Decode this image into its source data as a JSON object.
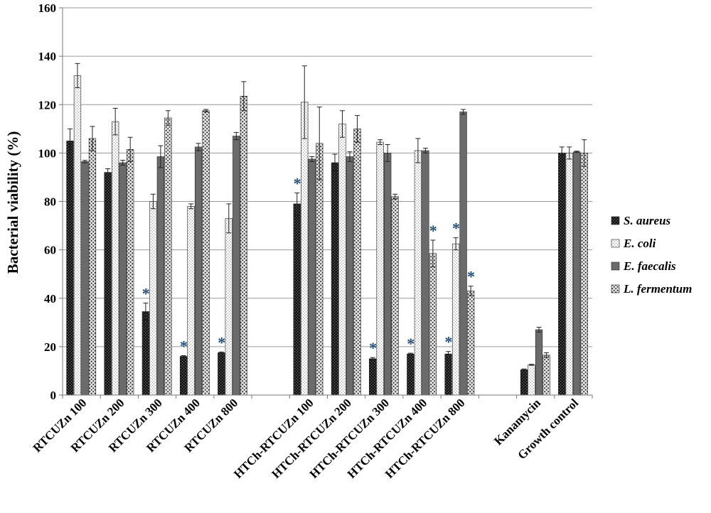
{
  "chart_data": {
    "type": "bar",
    "ylabel": "Bacterial viability (%)",
    "xlabel": "",
    "title": "",
    "ylim": [
      0,
      160
    ],
    "yticks": [
      0,
      20,
      40,
      60,
      80,
      100,
      120,
      140,
      160
    ],
    "grid": true,
    "legend_position": "right",
    "groups": [
      {
        "label": "RTCUZn  100"
      },
      {
        "label": "RTCUZn  200"
      },
      {
        "label": "RTCUZn  300"
      },
      {
        "label": "RTCUZn  400"
      },
      {
        "label": "RTCUZn  800"
      },
      {
        "label": ""
      },
      {
        "label": "HTCh-RTCUZn  100"
      },
      {
        "label": "HTCh-RTCUZn  200"
      },
      {
        "label": "HTCh-RTCUZn  300"
      },
      {
        "label": "HTCh-RTCUZn  400"
      },
      {
        "label": "HTCh-RTCUZn  800"
      },
      {
        "label": ""
      },
      {
        "label": "Kanamycin"
      },
      {
        "label": "Growth control"
      }
    ],
    "series": [
      {
        "name": "S. aureus",
        "pattern": "dark-check",
        "values": [
          105,
          92,
          34.5,
          16,
          17.5,
          null,
          79,
          96,
          15,
          17,
          17,
          null,
          10.5,
          100
        ],
        "errors": [
          5,
          1.5,
          3.5,
          0.3,
          0.3,
          null,
          4.5,
          3.5,
          0.5,
          0.3,
          1,
          null,
          0.3,
          2.5
        ]
      },
      {
        "name": "E. coli",
        "pattern": "light-dots",
        "values": [
          132,
          113,
          80,
          78,
          73,
          null,
          121,
          112,
          104.5,
          101,
          62.5,
          null,
          12.5,
          100
        ],
        "errors": [
          5,
          5.5,
          3,
          1,
          6,
          null,
          15,
          5.5,
          1,
          5,
          2.5,
          null,
          0.2,
          2.5
        ]
      },
      {
        "name": "E. faecalis",
        "pattern": "gray-solid",
        "values": [
          96.5,
          96,
          98.5,
          102.5,
          107,
          null,
          97.5,
          98.5,
          100,
          101,
          117,
          null,
          27,
          100.5
        ],
        "errors": [
          0.5,
          1,
          4.5,
          1.5,
          1.5,
          null,
          1,
          2,
          3.5,
          1,
          1,
          null,
          1,
          0.3
        ]
      },
      {
        "name": "L. fermentum",
        "pattern": "dense-dots",
        "values": [
          106,
          101.5,
          114.5,
          117.5,
          123.5,
          null,
          104,
          110,
          82,
          58.5,
          43,
          null,
          16.5,
          100
        ],
        "errors": [
          5,
          5,
          3,
          0.5,
          6,
          null,
          15,
          5.5,
          1,
          5.5,
          2,
          null,
          1,
          5.5
        ]
      }
    ],
    "significance": [
      {
        "group": 2,
        "series": 0,
        "text": "*"
      },
      {
        "group": 3,
        "series": 0,
        "text": "*"
      },
      {
        "group": 4,
        "series": 0,
        "text": "*"
      },
      {
        "group": 6,
        "series": 0,
        "text": "*"
      },
      {
        "group": 8,
        "series": 0,
        "text": "*"
      },
      {
        "group": 9,
        "series": 0,
        "text": "*"
      },
      {
        "group": 9,
        "series": 3,
        "text": "*"
      },
      {
        "group": 10,
        "series": 0,
        "text": "*"
      },
      {
        "group": 10,
        "series": 1,
        "text": "*"
      },
      {
        "group": 10,
        "series": 3,
        "text": "*"
      }
    ]
  }
}
